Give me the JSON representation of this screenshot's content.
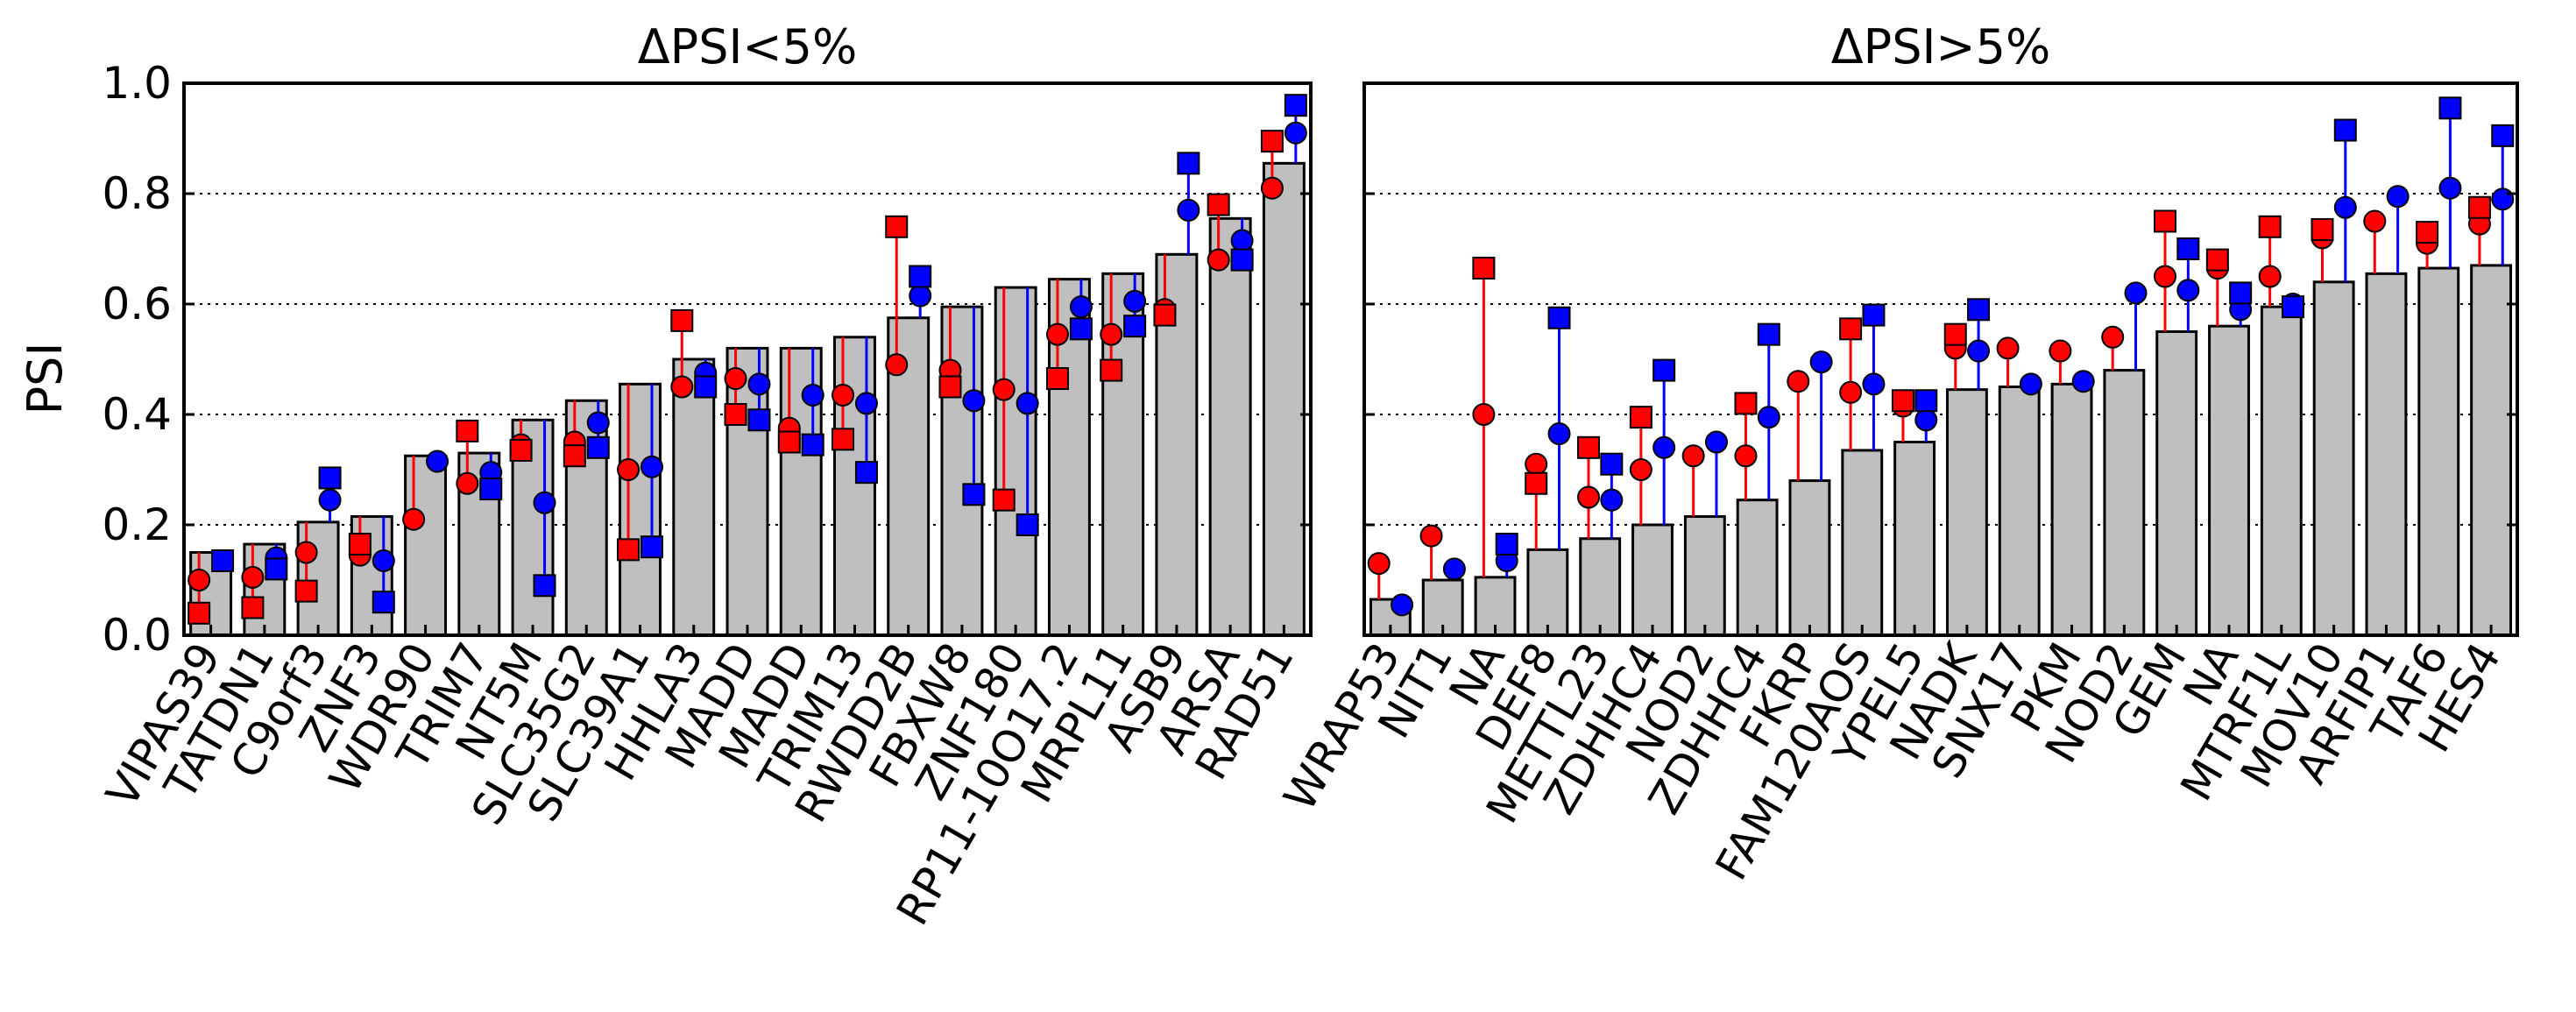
{
  "chart_data": {
    "type": "bar",
    "ylabel": "PSI",
    "ylim": [
      0,
      1.0
    ],
    "yticks": [
      "0.0",
      "0.2",
      "0.4",
      "0.6",
      "0.8",
      "1.0"
    ],
    "grid": "horizontal dotted",
    "colors": {
      "bar": "#bfbfbf",
      "red": "#ff0000",
      "blue": "#0000ff"
    },
    "marker_legend": "circle and square markers in red and blue; vertical line from bar top to marker",
    "panels": [
      {
        "title": "ΔPSI<5%",
        "categories": [
          "VIPAS39",
          "TATDN1",
          "C9orf3",
          "ZNF3",
          "WDR90",
          "TRIM7",
          "NT5M",
          "SLC35G2",
          "SLC39A1",
          "HHLA3",
          "MADD",
          "MADD",
          "TRIM13",
          "RWDD2B",
          "FBXW8",
          "ZNF180",
          "RP11-10O17.2",
          "MRPL11",
          "ASB9",
          "ARSA",
          "RAD51"
        ],
        "values": [
          0.15,
          0.165,
          0.205,
          0.215,
          0.325,
          0.33,
          0.39,
          0.425,
          0.455,
          0.5,
          0.52,
          0.52,
          0.54,
          0.575,
          0.595,
          0.63,
          0.645,
          0.655,
          0.69,
          0.755,
          0.855
        ],
        "red_circle": [
          0.1,
          0.105,
          0.15,
          0.145,
          0.21,
          0.275,
          0.345,
          0.35,
          0.3,
          0.45,
          0.465,
          0.375,
          0.435,
          0.49,
          0.48,
          0.445,
          0.545,
          0.545,
          0.59,
          0.68,
          0.81
        ],
        "red_square": [
          0.04,
          0.05,
          0.08,
          0.165,
          null,
          0.37,
          0.335,
          0.325,
          0.155,
          0.57,
          0.4,
          0.35,
          0.355,
          0.74,
          0.45,
          0.245,
          0.465,
          0.48,
          0.58,
          0.78,
          0.895
        ],
        "blue_circle": [
          0.135,
          0.14,
          0.245,
          0.135,
          0.315,
          0.295,
          0.24,
          0.385,
          0.305,
          0.475,
          0.455,
          0.435,
          0.42,
          0.615,
          0.425,
          0.42,
          0.595,
          0.605,
          0.77,
          0.715,
          0.91
        ],
        "blue_square": [
          0.135,
          0.12,
          0.285,
          0.06,
          null,
          0.265,
          0.09,
          0.34,
          0.16,
          0.45,
          0.39,
          0.345,
          0.295,
          0.65,
          0.255,
          0.2,
          0.555,
          0.56,
          0.855,
          0.68,
          0.96
        ]
      },
      {
        "title": "ΔPSI>5%",
        "categories": [
          "WRAP53",
          "NIT1",
          "NA",
          "DEF8",
          "METTL23",
          "ZDHHC4",
          "NOD2",
          "ZDHHC4",
          "FKRP",
          "FAM120AOS",
          "YPEL5",
          "NADK",
          "SNX17",
          "PKM",
          "NOD2",
          "GEM",
          "NA",
          "MTRF1L",
          "MOV10",
          "ARFIP1",
          "TAF6",
          "HES4"
        ],
        "values": [
          0.065,
          0.1,
          0.105,
          0.155,
          0.175,
          0.2,
          0.215,
          0.245,
          0.28,
          0.335,
          0.35,
          0.445,
          0.45,
          0.455,
          0.48,
          0.55,
          0.56,
          0.595,
          0.64,
          0.655,
          0.665,
          0.67
        ],
        "red_circle": [
          0.13,
          0.18,
          0.4,
          0.31,
          0.25,
          0.3,
          0.325,
          0.325,
          0.46,
          0.44,
          0.415,
          0.52,
          0.52,
          0.515,
          0.54,
          0.65,
          0.665,
          0.65,
          0.72,
          0.75,
          0.71,
          0.745
        ],
        "red_square": [
          null,
          null,
          0.665,
          0.275,
          0.34,
          0.395,
          null,
          0.42,
          null,
          0.555,
          0.425,
          0.545,
          null,
          null,
          null,
          0.75,
          0.68,
          0.74,
          0.735,
          null,
          0.73,
          0.775
        ],
        "blue_circle": [
          0.055,
          0.12,
          0.135,
          0.365,
          0.245,
          0.34,
          0.35,
          0.395,
          0.495,
          0.455,
          0.39,
          0.515,
          0.455,
          0.46,
          0.62,
          0.625,
          0.59,
          0.6,
          0.775,
          0.795,
          0.81,
          0.79
        ],
        "blue_square": [
          null,
          null,
          0.165,
          0.575,
          0.31,
          0.48,
          null,
          0.545,
          null,
          0.58,
          0.425,
          0.59,
          null,
          null,
          null,
          0.7,
          0.62,
          0.595,
          0.915,
          null,
          0.955,
          0.905
        ]
      }
    ]
  }
}
